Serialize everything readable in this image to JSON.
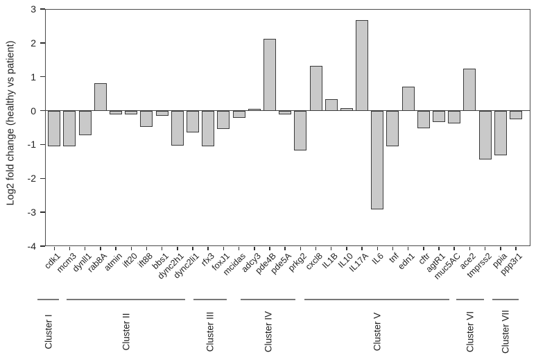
{
  "chart_data": {
    "type": "bar",
    "title": "",
    "xlabel": "",
    "ylabel": "Log2 fold change (healthy vs patient)",
    "ylim": [
      -4,
      3
    ],
    "yticks": [
      3,
      2,
      1,
      0,
      -1,
      -2,
      -3,
      -4
    ],
    "grid": "off",
    "legend": "none",
    "bar_fill_color": "#c9c9c9",
    "bar_edge_color": "#3a3a3a",
    "categories": [
      "cdk1",
      "mcm3",
      "dynll1",
      "rab8A",
      "atmin",
      "ift20",
      "ift88",
      "bbs1",
      "dync2h1",
      "dync2li1",
      "rfx3",
      "foxJ1",
      "mcidas",
      "adcy3",
      "pde4B",
      "pde5A",
      "prkg2",
      "cxcl8",
      "IL1B",
      "IL10",
      "IL17A",
      "IL6",
      "tnf",
      "edn1",
      "cftr",
      "agtR1",
      "muc5AC",
      "ace2",
      "tmprss2",
      "ppia",
      "ppp3r1"
    ],
    "values": [
      -1.05,
      -1.05,
      -0.72,
      0.81,
      -0.11,
      -0.12,
      -0.47,
      -0.15,
      -1.03,
      -0.64,
      -1.06,
      -0.55,
      -0.22,
      0.05,
      2.13,
      -0.12,
      -1.17,
      1.33,
      0.34,
      0.08,
      2.67,
      -2.92,
      -1.06,
      0.7,
      -0.52,
      -0.33,
      -0.37,
      1.23,
      -1.45,
      -1.31,
      -0.25
    ],
    "clusters": [
      {
        "label": "Cluster I",
        "from_index": 0,
        "to_index": 1
      },
      {
        "label": "Cluster II",
        "from_index": 2,
        "to_index": 9
      },
      {
        "label": "Cluster III",
        "from_index": 10,
        "to_index": 12
      },
      {
        "label": "Cluster IV",
        "from_index": 13,
        "to_index": 16
      },
      {
        "label": "Cluster V",
        "from_index": 17,
        "to_index": 26
      },
      {
        "label": "Cluster VI",
        "from_index": 27,
        "to_index": 28
      },
      {
        "label": "Cluster VII",
        "from_index": 29,
        "to_index": 30
      }
    ]
  }
}
